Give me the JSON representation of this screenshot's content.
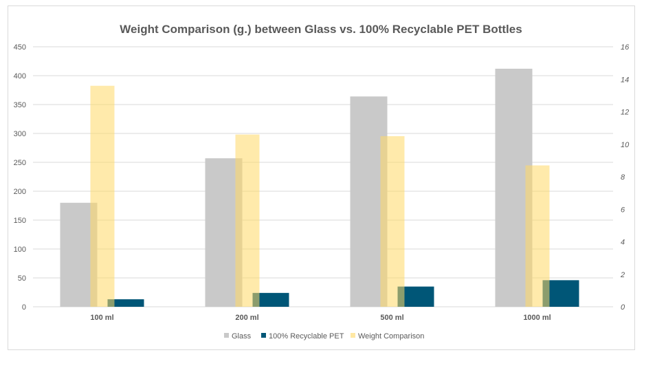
{
  "chart_data": {
    "type": "bar",
    "title": "Weight Comparison (g.) between Glass vs. 100% Recyclable PET Bottles",
    "categories": [
      "100 ml",
      "200 ml",
      "500 ml",
      "1000 ml"
    ],
    "series": [
      {
        "name": "Glass",
        "axis": "primary",
        "color": "#c9c9c9",
        "values": [
          180,
          257,
          364,
          412
        ]
      },
      {
        "name": "100% Recyclable PET",
        "axis": "primary",
        "color": "#005677",
        "values": [
          13,
          24,
          35,
          46
        ]
      },
      {
        "name": "Weight Comparison",
        "axis": "secondary",
        "color": "#ffd966",
        "values": [
          13.6,
          10.6,
          10.5,
          8.7
        ]
      }
    ],
    "ylim": [
      0,
      450
    ],
    "yticks": [
      0,
      50,
      100,
      150,
      200,
      250,
      300,
      350,
      400,
      450
    ],
    "y2lim": [
      0,
      16
    ],
    "y2ticks": [
      0,
      2,
      4,
      6,
      8,
      10,
      12,
      14,
      16
    ],
    "xlabel": "",
    "ylabel": "",
    "grid": true,
    "legend": "bottom"
  }
}
